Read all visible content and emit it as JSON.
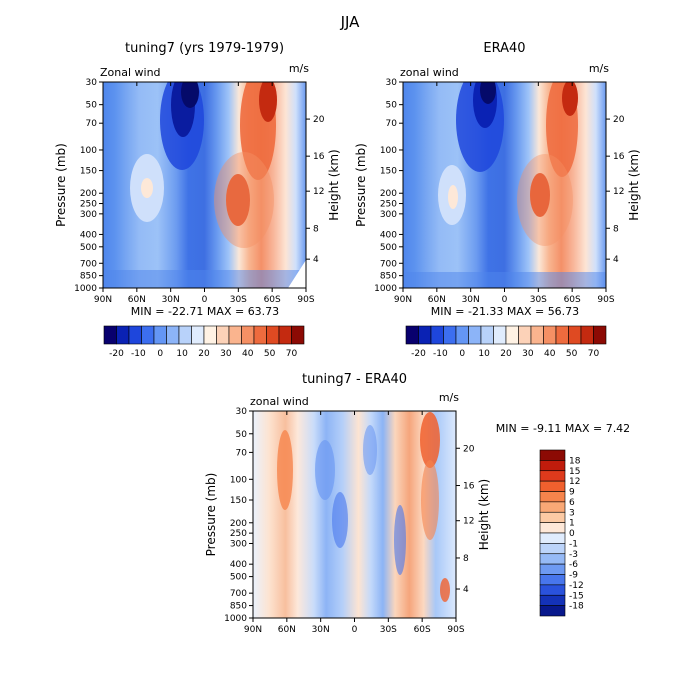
{
  "figure_title": "JJA",
  "chart_data": [
    {
      "type": "heatmap",
      "title": "tuning7 (yrs 1979-1979)",
      "corner_left": "Zonal wind",
      "corner_right": "m/s",
      "ylabel_left": "Pressure (mb)",
      "ylabel_right": "Height (km)",
      "x_ticks": [
        "90N",
        "60N",
        "30N",
        "0",
        "30S",
        "60S",
        "90S"
      ],
      "y_ticks": [
        "30",
        "50",
        "70",
        "100",
        "150",
        "200",
        "250",
        "300",
        "400",
        "500",
        "700",
        "850",
        "1000"
      ],
      "height_ticks": [
        "4",
        "8",
        "12",
        "16",
        "20"
      ],
      "stats": "MIN = -22.71   MAX =  63.73",
      "min": -22.71,
      "max": 63.73,
      "colorbar_labels": [
        "-20",
        "-10",
        "0",
        "10",
        "20",
        "30",
        "40",
        "50",
        "70"
      ],
      "colorbar_colors": [
        "#08006e",
        "#0a22b4",
        "#1e46dc",
        "#3c6ef0",
        "#6496f5",
        "#8cb4f8",
        "#b8d2fa",
        "#e0ecfd",
        "#fff2e4",
        "#fcd2b8",
        "#fab48e",
        "#f59064",
        "#ee6b3e",
        "#df4a22",
        "#c42a10",
        "#8c0a04"
      ]
    },
    {
      "type": "heatmap",
      "title": "ERA40",
      "corner_left": "zonal wind",
      "corner_right": "m/s",
      "ylabel_left": "Pressure (mb)",
      "ylabel_right": "Height (km)",
      "x_ticks": [
        "90N",
        "60N",
        "30N",
        "0",
        "30S",
        "60S",
        "90S"
      ],
      "y_ticks": [
        "30",
        "50",
        "70",
        "100",
        "150",
        "200",
        "250",
        "300",
        "400",
        "500",
        "700",
        "850",
        "1000"
      ],
      "height_ticks": [
        "4",
        "8",
        "12",
        "16",
        "20"
      ],
      "stats": "MIN = -21.33   MAX =  56.73",
      "min": -21.33,
      "max": 56.73,
      "colorbar_labels": [
        "-20",
        "-10",
        "0",
        "10",
        "20",
        "30",
        "40",
        "50",
        "70"
      ],
      "colorbar_colors": [
        "#08006e",
        "#0a22b4",
        "#1e46dc",
        "#3c6ef0",
        "#6496f5",
        "#8cb4f8",
        "#b8d2fa",
        "#e0ecfd",
        "#fff2e4",
        "#fcd2b8",
        "#fab48e",
        "#f59064",
        "#ee6b3e",
        "#df4a22",
        "#c42a10",
        "#8c0a04"
      ]
    },
    {
      "type": "heatmap",
      "title": "tuning7 - ERA40",
      "corner_left": "zonal wind",
      "corner_right": "m/s",
      "ylabel_left": "Pressure (mb)",
      "ylabel_right": "Height (km)",
      "x_ticks": [
        "90N",
        "60N",
        "30N",
        "0",
        "30S",
        "60S",
        "90S"
      ],
      "y_ticks": [
        "30",
        "50",
        "70",
        "100",
        "150",
        "200",
        "250",
        "300",
        "400",
        "500",
        "700",
        "850",
        "1000"
      ],
      "height_ticks": [
        "4",
        "8",
        "12",
        "16",
        "20"
      ],
      "stats": "MIN =  -9.11   MAX =   7.42",
      "min": -9.11,
      "max": 7.42,
      "colorbar_labels": [
        "18",
        "15",
        "12",
        "9",
        "6",
        "3",
        "1",
        "0",
        "-1",
        "-3",
        "-6",
        "-9",
        "-12",
        "-15",
        "-18"
      ],
      "colorbar_colors": [
        "#8c0a04",
        "#c01c0c",
        "#de3a1c",
        "#f0602e",
        "#f6844c",
        "#f9a876",
        "#fccaa4",
        "#fee8d8",
        "#e0ecfd",
        "#bcd4fa",
        "#96baf6",
        "#6e9af2",
        "#4876ec",
        "#2a52dc",
        "#1432b8",
        "#08188c"
      ]
    }
  ]
}
